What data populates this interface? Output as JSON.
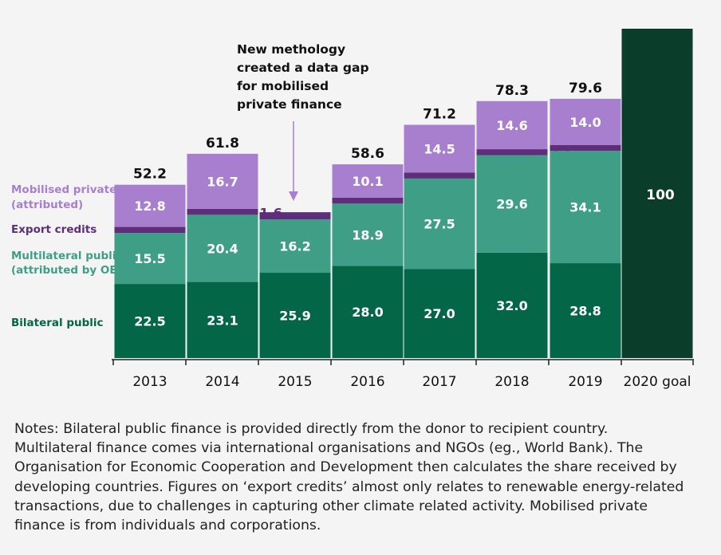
{
  "chart_data": {
    "type": "bar",
    "stacked": true,
    "categories": [
      "2013",
      "2014",
      "2015",
      "2016",
      "2017",
      "2018",
      "2019",
      "2020 goal"
    ],
    "series": [
      {
        "name": "Bilateral public",
        "color": "#036646",
        "values": [
          22.5,
          23.1,
          25.9,
          28.0,
          27.0,
          32.0,
          28.8,
          null
        ]
      },
      {
        "name": "Multilateral public (attributed by OECD)",
        "color": "#3e9e86",
        "values": [
          15.5,
          20.4,
          16.2,
          18.9,
          27.5,
          29.6,
          34.1,
          null
        ]
      },
      {
        "name": "Export credits",
        "color": "#5e2d7c",
        "values": [
          1.6,
          1.6,
          2.5,
          1.5,
          2.1,
          2.1,
          2.6,
          null
        ]
      },
      {
        "name": "Mobilised private (attributed)",
        "color": "#a87fcf",
        "values": [
          12.8,
          16.7,
          null,
          10.1,
          14.5,
          14.6,
          14.0,
          null
        ]
      }
    ],
    "goal": {
      "category": "2020 goal",
      "value": 100,
      "label": "100",
      "color": "#0b3d2b"
    },
    "totals": [
      "52.2",
      "61.8",
      "",
      "58.6",
      "71.2",
      "78.3",
      "79.6",
      ""
    ],
    "legend": [
      {
        "lines": [
          "Mobilised private",
          "(attributed)"
        ],
        "color": "#a87fcf"
      },
      {
        "lines": [
          "Export credits"
        ],
        "color": "#5e2d7c"
      },
      {
        "lines": [
          "Multilateral public",
          "(attributed by OECD)"
        ],
        "color": "#3e9e86"
      },
      {
        "lines": [
          "Bilateral public"
        ],
        "color": "#036646"
      }
    ],
    "annotation": {
      "lines": [
        "New methology",
        "created a data gap",
        "for mobilised",
        "private finance"
      ],
      "category": "2015",
      "color": "#a87fcf"
    },
    "ylim": [
      0,
      100
    ]
  },
  "notes": {
    "lines": [
      "Notes: Bilateral public finance is provided directly from the donor to recipient country.",
      "Multilateral finance comes via international organisations and NGOs (eg., World Bank). The",
      "Organisation for Economic Cooperation and Development then calculates the share received by",
      "developing countries. Figures on ‘export credits’ almost only relates to renewable energy-related",
      "transactions, due to challenges in capturing other climate related activity. Mobilised private",
      "finance is from individuals and corporations."
    ]
  }
}
